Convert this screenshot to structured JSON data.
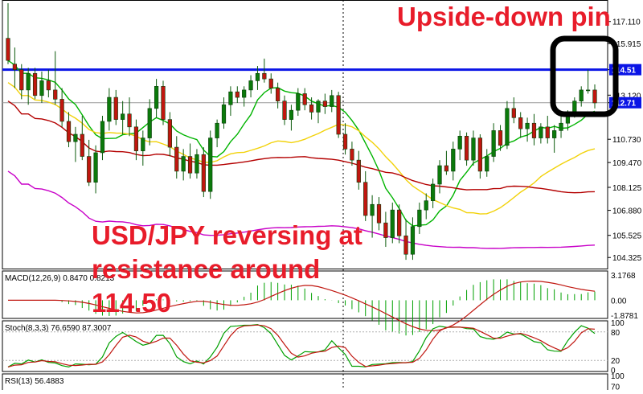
{
  "chart_data": {
    "type": "candlestick",
    "main": {
      "price_ticks": [
        117.11,
        115.915,
        114.5,
        113.12,
        112.71,
        110.73,
        109.47,
        108.125,
        106.88,
        105.525,
        104.325
      ],
      "resistance": {
        "value": 114.5,
        "label": "114.51"
      },
      "last_price": {
        "value": 112.71,
        "label": "112.71"
      },
      "ylim": [
        103.9,
        118.1
      ],
      "ma_colors": [
        "#00b400",
        "#f2d20a",
        "#b40000",
        "#c800c8"
      ],
      "candles": [
        [
          116.2,
          118.1,
          114.8,
          115.0
        ],
        [
          114.8,
          115.7,
          113.5,
          114.5
        ],
        [
          114.5,
          114.8,
          112.9,
          113.4
        ],
        [
          113.4,
          114.6,
          112.6,
          114.3
        ],
        [
          114.3,
          114.6,
          112.9,
          113.1
        ],
        [
          113.1,
          114.4,
          112.7,
          113.9
        ],
        [
          113.9,
          114.5,
          113.0,
          113.4
        ],
        [
          113.4,
          115.5,
          112.6,
          112.9
        ],
        [
          112.9,
          113.5,
          111.4,
          111.7
        ],
        [
          111.7,
          112.2,
          110.3,
          110.6
        ],
        [
          110.6,
          111.4,
          109.5,
          111.0
        ],
        [
          111.0,
          112.0,
          109.6,
          109.8
        ],
        [
          109.8,
          110.7,
          108.2,
          108.4
        ],
        [
          108.4,
          110.4,
          107.8,
          110.0
        ],
        [
          110.0,
          112.0,
          109.6,
          111.7
        ],
        [
          111.7,
          113.5,
          111.2,
          113.0
        ],
        [
          113.0,
          113.4,
          111.5,
          111.8
        ],
        [
          111.8,
          112.8,
          111.0,
          112.1
        ],
        [
          112.1,
          113.0,
          110.9,
          111.4
        ],
        [
          111.4,
          111.8,
          109.6,
          110.1
        ],
        [
          110.1,
          111.2,
          109.3,
          110.8
        ],
        [
          110.8,
          112.9,
          110.4,
          112.4
        ],
        [
          112.4,
          114.0,
          111.9,
          113.6
        ],
        [
          113.6,
          113.9,
          111.5,
          111.8
        ],
        [
          111.8,
          112.2,
          109.8,
          110.3
        ],
        [
          110.3,
          110.9,
          108.6,
          109.0
        ],
        [
          109.0,
          110.2,
          108.5,
          109.8
        ],
        [
          109.8,
          110.5,
          108.6,
          108.9
        ],
        [
          108.9,
          110.2,
          108.6,
          109.9
        ],
        [
          109.9,
          110.3,
          107.6,
          107.9
        ],
        [
          107.9,
          111.2,
          107.5,
          110.8
        ],
        [
          110.8,
          111.8,
          110.3,
          111.6
        ],
        [
          111.6,
          113.0,
          111.3,
          112.6
        ],
        [
          112.6,
          113.6,
          112.0,
          113.3
        ],
        [
          113.3,
          113.6,
          112.7,
          113.0
        ],
        [
          113.0,
          113.6,
          112.5,
          113.4
        ],
        [
          113.4,
          114.2,
          113.0,
          113.9
        ],
        [
          113.9,
          114.7,
          113.4,
          114.3
        ],
        [
          114.3,
          115.1,
          113.8,
          114.0
        ],
        [
          114.0,
          114.3,
          113.2,
          113.5
        ],
        [
          113.5,
          113.8,
          112.4,
          112.8
        ],
        [
          112.8,
          113.1,
          111.5,
          111.8
        ],
        [
          111.8,
          112.6,
          111.2,
          112.3
        ],
        [
          112.3,
          113.5,
          112.0,
          113.2
        ],
        [
          113.2,
          113.5,
          112.3,
          112.6
        ],
        [
          112.6,
          113.0,
          111.8,
          112.2
        ],
        [
          112.2,
          112.9,
          111.6,
          112.8
        ],
        [
          112.8,
          113.2,
          112.1,
          112.5
        ],
        [
          112.5,
          113.4,
          112.2,
          113.1
        ],
        [
          113.1,
          113.3,
          110.8,
          111.0
        ],
        [
          111.0,
          111.6,
          109.9,
          110.2
        ],
        [
          110.2,
          110.6,
          109.3,
          109.6
        ],
        [
          109.6,
          110.1,
          108.0,
          108.4
        ],
        [
          108.4,
          109.0,
          106.3,
          106.6
        ],
        [
          106.6,
          107.7,
          105.4,
          107.2
        ],
        [
          107.2,
          107.6,
          105.8,
          106.2
        ],
        [
          106.2,
          106.8,
          104.9,
          105.4
        ],
        [
          105.4,
          107.3,
          105.1,
          106.9
        ],
        [
          106.9,
          107.2,
          105.1,
          105.5
        ],
        [
          105.5,
          106.4,
          104.2,
          104.5
        ],
        [
          104.5,
          106.5,
          104.2,
          106.0
        ],
        [
          106.0,
          107.3,
          105.6,
          106.9
        ],
        [
          106.9,
          107.8,
          106.4,
          107.4
        ],
        [
          107.4,
          108.6,
          107.0,
          108.3
        ],
        [
          108.3,
          109.6,
          107.8,
          109.3
        ],
        [
          109.3,
          110.1,
          108.8,
          109.0
        ],
        [
          109.0,
          110.6,
          108.5,
          110.2
        ],
        [
          110.2,
          111.2,
          109.6,
          110.9
        ],
        [
          110.9,
          111.1,
          109.3,
          109.6
        ],
        [
          109.6,
          111.2,
          109.3,
          110.8
        ],
        [
          110.8,
          111.0,
          108.6,
          109.0
        ],
        [
          109.0,
          110.2,
          108.7,
          109.8
        ],
        [
          109.8,
          111.6,
          109.5,
          111.2
        ],
        [
          111.2,
          111.5,
          110.1,
          110.4
        ],
        [
          110.4,
          112.8,
          110.2,
          112.4
        ],
        [
          112.4,
          113.0,
          111.6,
          111.9
        ],
        [
          111.9,
          112.2,
          110.8,
          111.3
        ],
        [
          111.3,
          111.9,
          110.6,
          111.6
        ],
        [
          111.6,
          112.1,
          110.4,
          110.8
        ],
        [
          110.8,
          111.6,
          110.5,
          111.4
        ],
        [
          111.4,
          112.0,
          110.5,
          110.8
        ],
        [
          110.8,
          111.5,
          110.0,
          111.2
        ],
        [
          111.2,
          112.0,
          110.8,
          111.6
        ],
        [
          111.6,
          112.3,
          111.2,
          112.1
        ],
        [
          112.1,
          113.0,
          111.9,
          112.8
        ],
        [
          112.8,
          113.6,
          112.5,
          113.4
        ],
        [
          113.4,
          114.5,
          113.2,
          113.4
        ],
        [
          113.4,
          113.7,
          112.4,
          112.7
        ]
      ]
    },
    "macd": {
      "label": "MACD(12,26,9) 0.8470 0.8213",
      "ticks": [
        3.1768,
        0.0,
        -1.8781
      ]
    },
    "stoch": {
      "label": "Stoch(8,3,3) 76.6590 87.3007",
      "ticks": [
        100,
        80,
        20,
        0
      ]
    },
    "rsi": {
      "label": "RSI(13) 56.4883",
      "ticks": [
        100,
        70
      ]
    }
  },
  "annotations": {
    "top": "Upside-down pin",
    "main": "USD/JPY reversing at\nresistance around\n114.50"
  }
}
